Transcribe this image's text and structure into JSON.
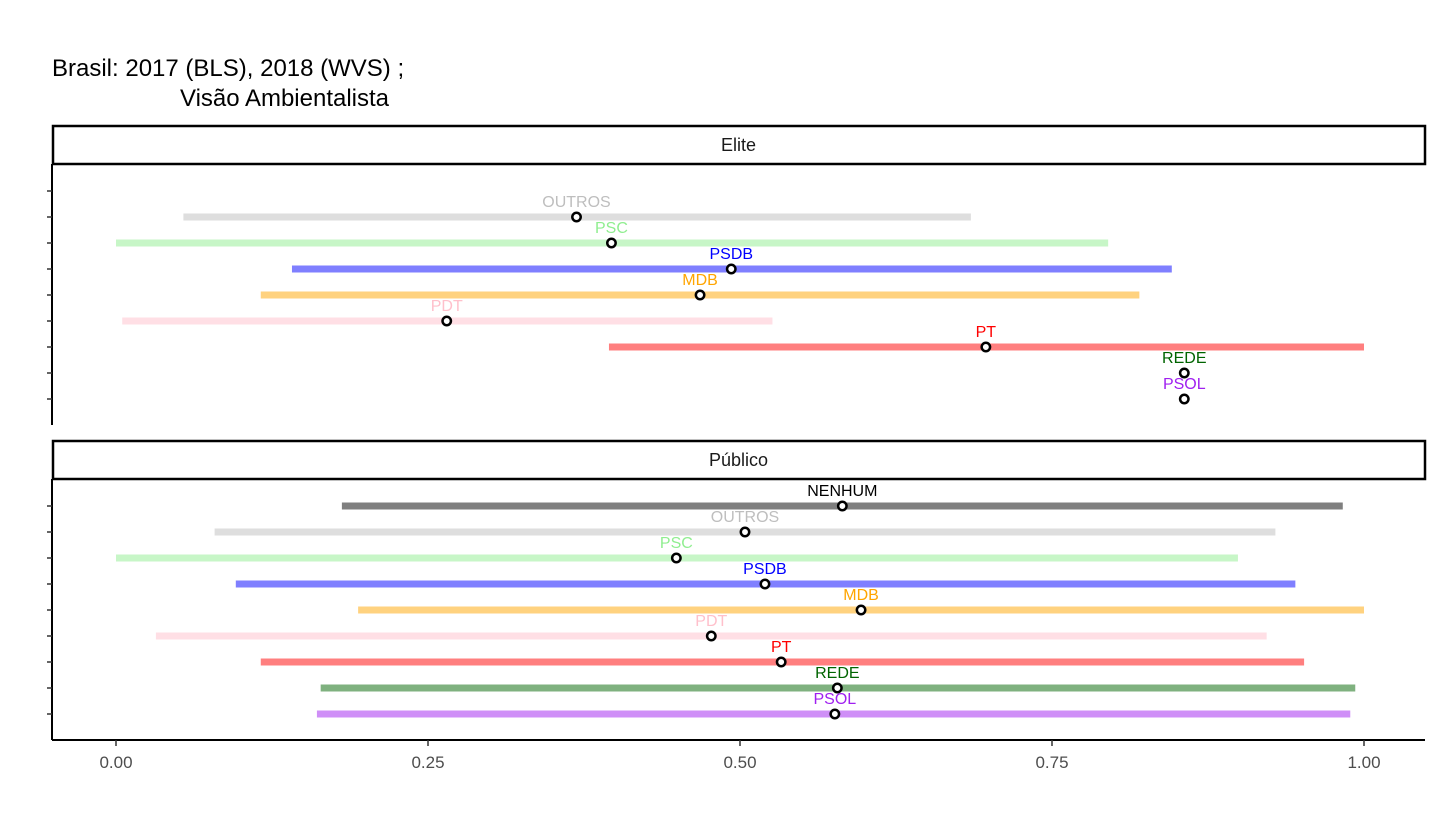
{
  "title": {
    "line1": "Brasil: 2017 (BLS), 2018 (WVS) ;",
    "line2": "Visão Ambientalista"
  },
  "colors": {
    "NENHUM": "#000000",
    "OUTROS": "#bebebe",
    "PSC": "#90ee90",
    "PSDB": "#0000ff",
    "MDB": "#ffa500",
    "PDT": "#ffc0cb",
    "PT": "#ff0000",
    "REDE": "#006400",
    "PSOL": "#a020f0"
  },
  "chart_data": {
    "type": "scatter",
    "subtype": "point-range (faceted)",
    "xlim": [
      -0.05,
      1.05
    ],
    "x_ticks": [
      "0.00",
      "0.25",
      "0.50",
      "0.75",
      "1.00"
    ],
    "x_tick_values": [
      0,
      0.25,
      0.5,
      0.75,
      1.0
    ],
    "xlabel": "",
    "ylabel": "",
    "grid": false,
    "facets": [
      {
        "name": "Elite",
        "parties": [
          {
            "party": "OUTROS",
            "estimate": 0.369,
            "low": 0.054,
            "high": 0.685
          },
          {
            "party": "PSC",
            "estimate": 0.397,
            "low": 0.0,
            "high": 0.795
          },
          {
            "party": "PSDB",
            "estimate": 0.493,
            "low": 0.141,
            "high": 0.846
          },
          {
            "party": "MDB",
            "estimate": 0.468,
            "low": 0.116,
            "high": 0.82
          },
          {
            "party": "PDT",
            "estimate": 0.265,
            "low": 0.005,
            "high": 0.526
          },
          {
            "party": "PT",
            "estimate": 0.697,
            "low": 0.395,
            "high": 1.0
          },
          {
            "party": "REDE",
            "estimate": 0.856,
            "low": null,
            "high": null
          },
          {
            "party": "PSOL",
            "estimate": 0.856,
            "low": null,
            "high": null
          }
        ]
      },
      {
        "name": "Público",
        "parties": [
          {
            "party": "NENHUM",
            "estimate": 0.582,
            "low": 0.181,
            "high": 0.983
          },
          {
            "party": "OUTROS",
            "estimate": 0.504,
            "low": 0.079,
            "high": 0.929
          },
          {
            "party": "PSC",
            "estimate": 0.449,
            "low": 0.0,
            "high": 0.899
          },
          {
            "party": "PSDB",
            "estimate": 0.52,
            "low": 0.096,
            "high": 0.945
          },
          {
            "party": "MDB",
            "estimate": 0.597,
            "low": 0.194,
            "high": 1.0
          },
          {
            "party": "PDT",
            "estimate": 0.477,
            "low": 0.032,
            "high": 0.922
          },
          {
            "party": "PT",
            "estimate": 0.533,
            "low": 0.116,
            "high": 0.952
          },
          {
            "party": "REDE",
            "estimate": 0.578,
            "low": 0.164,
            "high": 0.993
          },
          {
            "party": "PSOL",
            "estimate": 0.576,
            "low": 0.161,
            "high": 0.989
          }
        ]
      }
    ]
  }
}
